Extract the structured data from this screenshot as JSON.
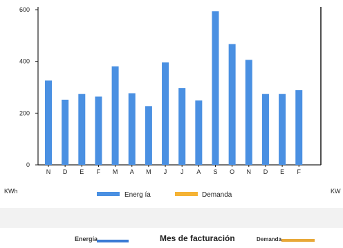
{
  "chart_data": {
    "type": "bar",
    "categories": [
      "N",
      "D",
      "E",
      "F",
      "M",
      "A",
      "M",
      "J",
      "J",
      "A",
      "S",
      "O",
      "N",
      "D",
      "E",
      "F"
    ],
    "series": [
      {
        "name": "Energia",
        "values": [
          326,
          252,
          274,
          264,
          381,
          277,
          227,
          396,
          297,
          249,
          594,
          467,
          406,
          274,
          274,
          289
        ]
      }
    ],
    "ylim": [
      0,
      600
    ],
    "yticks": [
      0,
      200,
      400,
      600
    ],
    "ylabel": "KWh",
    "right_ylabel": "KW",
    "legend": [
      {
        "label": "Energ ía",
        "color": "#4a90e2"
      },
      {
        "label": "Demanda",
        "color": "#f5b335"
      }
    ],
    "legend_position": "bottom",
    "grid": false
  },
  "footer": {
    "energy_label": "Energía",
    "title": "Mes de facturación",
    "demand_label": "Demanda",
    "energy_color": "#3a7bd5",
    "demand_color": "#e8a838"
  }
}
